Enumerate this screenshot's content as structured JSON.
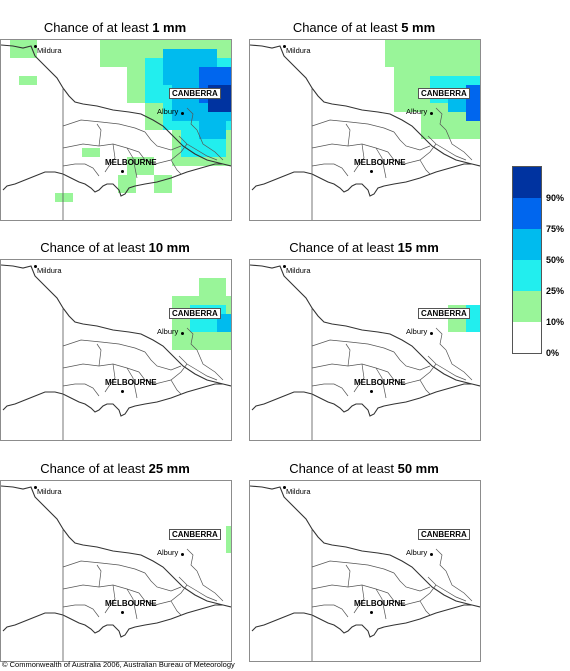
{
  "panels": [
    {
      "prefix": "Chance of at least ",
      "amount": "1 mm",
      "level": 1
    },
    {
      "prefix": "Chance of at least ",
      "amount": "5 mm",
      "level": 5
    },
    {
      "prefix": "Chance of at least ",
      "amount": "10 mm",
      "level": 10
    },
    {
      "prefix": "Chance of at least ",
      "amount": "15 mm",
      "level": 15
    },
    {
      "prefix": "Chance of at least ",
      "amount": "25 mm",
      "level": 25
    },
    {
      "prefix": "Chance of at least ",
      "amount": "50 mm",
      "level": 50
    }
  ],
  "places": {
    "mildura": "Mildura",
    "canberra": "CANBERRA",
    "albury": "Albury",
    "melbourne": "MELBOURNE"
  },
  "legend": {
    "labels": [
      "90%",
      "75%",
      "50%",
      "25%",
      "10%",
      "0%"
    ],
    "colors": [
      "#0033a0",
      "#0066ee",
      "#00bbee",
      "#22eeee",
      "#99f599",
      "#ffffff"
    ]
  },
  "copyright": "© Commonwealth of Australia 2006, Australian Bureau of Meteorology"
}
